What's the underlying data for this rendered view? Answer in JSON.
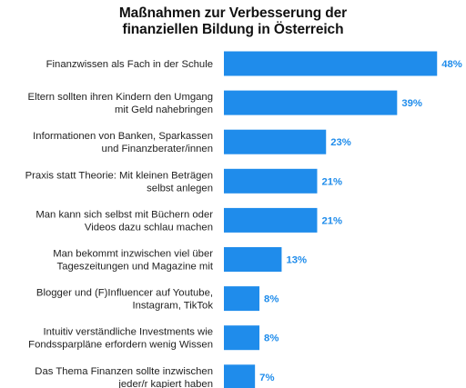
{
  "chart_data": {
    "type": "bar",
    "orientation": "horizontal",
    "title_lines": [
      "Maßnahmen zur Verbesserung der",
      "finanziellen Bildung in Österreich"
    ],
    "categories": [
      [
        "Finanzwissen als Fach in der Schule"
      ],
      [
        "Eltern sollten ihren Kindern den Umgang",
        "mit Geld nahebringen"
      ],
      [
        "Informationen von Banken, Sparkassen",
        "und Finanzberater/innen"
      ],
      [
        "Praxis statt Theorie: Mit kleinen Beträgen",
        "selbst anlegen"
      ],
      [
        "Man kann sich selbst mit Büchern oder",
        "Videos dazu schlau machen"
      ],
      [
        "Man bekommt inzwischen viel über",
        "Tageszeitungen und Magazine mit"
      ],
      [
        "Blogger und (F)Influencer auf Youtube,",
        "Instagram, TikTok"
      ],
      [
        "Intuitiv verständliche Investments wie",
        "Fondssparpläne erfordern wenig Wissen"
      ],
      [
        "Das Thema Finanzen sollte inzwischen",
        "jeder/r kapiert haben"
      ]
    ],
    "values": [
      48,
      39,
      23,
      21,
      21,
      13,
      8,
      8,
      7
    ],
    "value_suffix": "%",
    "xlim": [
      0,
      50
    ],
    "grid": false,
    "legend": "none",
    "bar_color": "#1f8ceb",
    "label_color": "#1f8ceb"
  }
}
